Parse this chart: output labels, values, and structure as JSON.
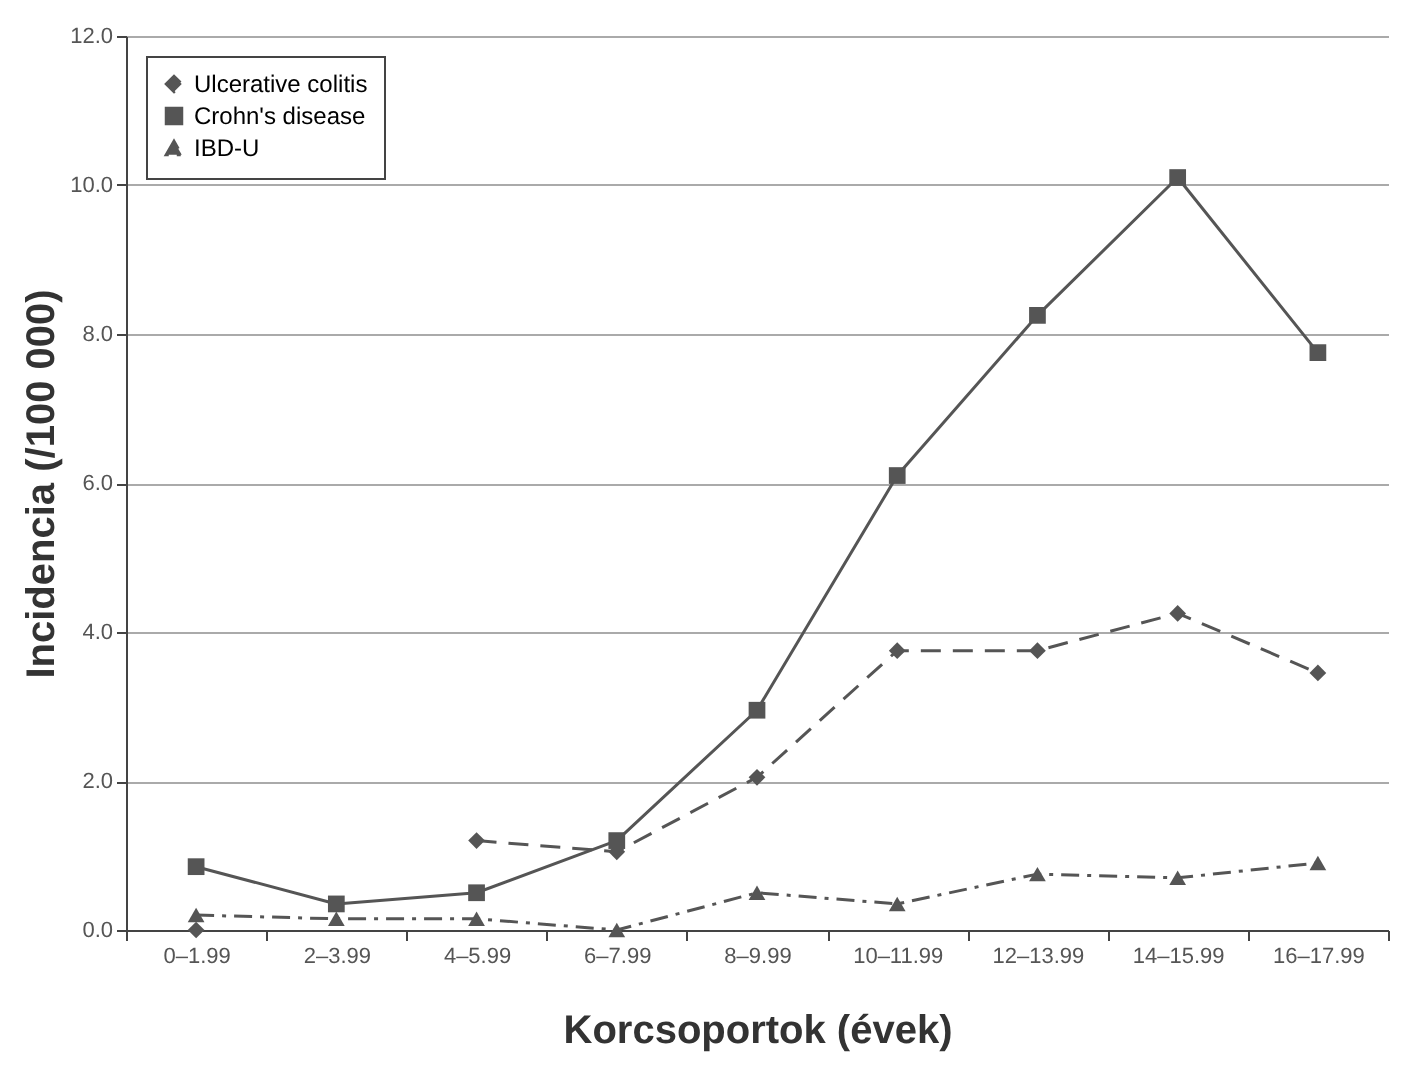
{
  "chart_data": {
    "type": "line",
    "xlabel": "Korcsoportok (évek)",
    "ylabel": "Incidencia (/100 000)",
    "categories": [
      "0–1.99",
      "2–3.99",
      "4–5.99",
      "6–7.99",
      "8–9.99",
      "10–11.99",
      "12–13.99",
      "14–15.99",
      "16–17.99"
    ],
    "series": [
      {
        "name": "Ulcerative colitis",
        "color": "#555555",
        "line_style": "dashed",
        "marker": "diamond",
        "values": [
          0,
          null,
          1.2,
          1.05,
          2.05,
          3.75,
          3.75,
          4.25,
          3.45
        ]
      },
      {
        "name": "Crohn's disease",
        "color": "#555555",
        "line_style": "solid",
        "marker": "square",
        "values": [
          0.85,
          0.35,
          0.5,
          1.2,
          2.95,
          6.1,
          8.25,
          10.1,
          7.75
        ]
      },
      {
        "name": "IBD-U",
        "color": "#555555",
        "line_style": "dotted",
        "marker": "triangle",
        "values": [
          0.2,
          0.15,
          0.15,
          0,
          0.5,
          0.35,
          0.75,
          0.7,
          0.9
        ]
      }
    ],
    "ylim": [
      0,
      12
    ],
    "yticks": [
      {
        "value": 0,
        "label": "0.0"
      },
      {
        "value": 2,
        "label": "2.0"
      },
      {
        "value": 4,
        "label": "4.0"
      },
      {
        "value": 6,
        "label": "6.0"
      },
      {
        "value": 8,
        "label": "8.0"
      },
      {
        "value": 10,
        "label": "10.0"
      },
      {
        "value": 12,
        "label": "12.0"
      }
    ],
    "grid": "y",
    "legend": "top left"
  }
}
